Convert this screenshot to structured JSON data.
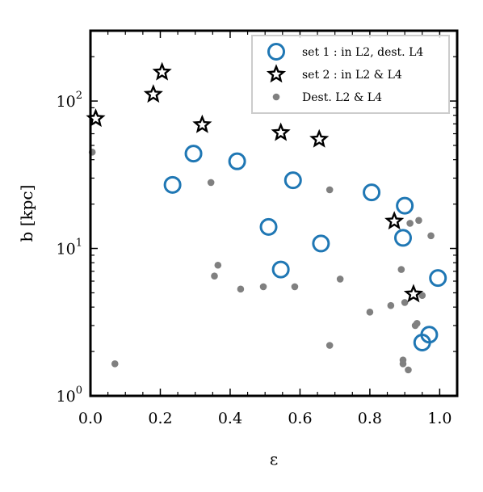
{
  "chart_data": {
    "type": "scatter",
    "title": "",
    "xlabel": "ε",
    "ylabel": "b [kpc]",
    "xlim": [
      0.0,
      1.05
    ],
    "ylim": [
      1,
      300
    ],
    "yscale": "log",
    "grid": false,
    "legend_position": "top-right",
    "x_ticks": [
      {
        "value": 0.0,
        "label": "0.0"
      },
      {
        "value": 0.2,
        "label": "0.2"
      },
      {
        "value": 0.4,
        "label": "0.4"
      },
      {
        "value": 0.6,
        "label": "0.6"
      },
      {
        "value": 0.8,
        "label": "0.8"
      },
      {
        "value": 1.0,
        "label": "1.0"
      }
    ],
    "y_ticks": [
      {
        "value": 1,
        "base": "10",
        "exp": "0"
      },
      {
        "value": 10,
        "base": "10",
        "exp": "1"
      },
      {
        "value": 100,
        "base": "10",
        "exp": "2"
      }
    ],
    "series": [
      {
        "name": "set 1 : in L2, dest. L4",
        "marker": "circle-open",
        "color": "#1f77b4",
        "points": [
          {
            "x": 0.235,
            "y": 27
          },
          {
            "x": 0.295,
            "y": 44
          },
          {
            "x": 0.42,
            "y": 39
          },
          {
            "x": 0.51,
            "y": 14
          },
          {
            "x": 0.545,
            "y": 7.2
          },
          {
            "x": 0.58,
            "y": 29
          },
          {
            "x": 0.66,
            "y": 10.8
          },
          {
            "x": 0.805,
            "y": 24
          },
          {
            "x": 0.895,
            "y": 11.8
          },
          {
            "x": 0.9,
            "y": 19.5
          },
          {
            "x": 0.95,
            "y": 2.3
          },
          {
            "x": 0.97,
            "y": 2.6
          },
          {
            "x": 0.995,
            "y": 6.3
          }
        ]
      },
      {
        "name": "set 2 : in L2 & L4",
        "marker": "star",
        "color": "#000000",
        "points": [
          {
            "x": 0.015,
            "y": 76
          },
          {
            "x": 0.18,
            "y": 111
          },
          {
            "x": 0.205,
            "y": 157
          },
          {
            "x": 0.32,
            "y": 69
          },
          {
            "x": 0.545,
            "y": 61
          },
          {
            "x": 0.655,
            "y": 55
          },
          {
            "x": 0.87,
            "y": 15.3
          },
          {
            "x": 0.925,
            "y": 4.9
          }
        ]
      },
      {
        "name": "Dest. L2 & L4",
        "marker": "dot",
        "color": "#808080",
        "points": [
          {
            "x": 0.005,
            "y": 45
          },
          {
            "x": 0.07,
            "y": 1.65
          },
          {
            "x": 0.345,
            "y": 28
          },
          {
            "x": 0.355,
            "y": 6.5
          },
          {
            "x": 0.365,
            "y": 7.7
          },
          {
            "x": 0.43,
            "y": 5.3
          },
          {
            "x": 0.495,
            "y": 5.5
          },
          {
            "x": 0.585,
            "y": 5.5
          },
          {
            "x": 0.685,
            "y": 25
          },
          {
            "x": 0.685,
            "y": 2.2
          },
          {
            "x": 0.715,
            "y": 6.2
          },
          {
            "x": 0.8,
            "y": 3.7
          },
          {
            "x": 0.86,
            "y": 4.1
          },
          {
            "x": 0.89,
            "y": 7.2
          },
          {
            "x": 0.895,
            "y": 1.65
          },
          {
            "x": 0.895,
            "y": 1.75
          },
          {
            "x": 0.9,
            "y": 4.3
          },
          {
            "x": 0.91,
            "y": 1.5
          },
          {
            "x": 0.915,
            "y": 14.8
          },
          {
            "x": 0.93,
            "y": 3.0
          },
          {
            "x": 0.935,
            "y": 3.1
          },
          {
            "x": 0.94,
            "y": 15.5
          },
          {
            "x": 0.95,
            "y": 4.8
          },
          {
            "x": 0.975,
            "y": 12.2
          }
        ]
      }
    ]
  }
}
